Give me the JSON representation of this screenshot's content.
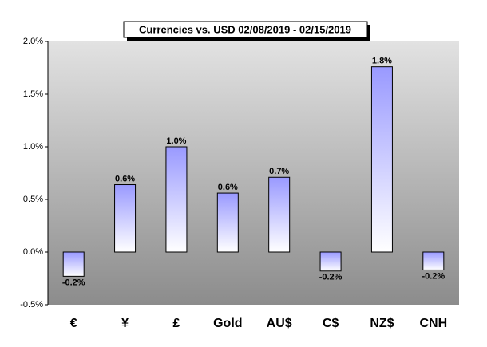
{
  "chart_data": {
    "type": "bar",
    "title": "Currencies vs. USD 02/08/2019 - 02/15/2019",
    "categories": [
      "€",
      "¥",
      "£",
      "Gold",
      "AU$",
      "C$",
      "NZ$",
      "CNH"
    ],
    "values": [
      -0.23,
      0.64,
      1.0,
      0.56,
      0.71,
      -0.18,
      1.76,
      -0.17
    ],
    "value_labels": [
      "-0.2%",
      "0.6%",
      "1.0%",
      "0.6%",
      "0.7%",
      "-0.2%",
      "1.8%",
      "-0.2%"
    ],
    "color": "#9999ff",
    "ylim": [
      -0.5,
      2.0
    ],
    "yticks": [
      {
        "value": -0.5,
        "label": "-0.5%"
      },
      {
        "value": 0,
        "label": "0.0%"
      },
      {
        "value": 0.5,
        "label": "0.5%"
      },
      {
        "value": 1.0,
        "label": "1.0%"
      },
      {
        "value": 1.5,
        "label": "1.5%"
      },
      {
        "value": 2.0,
        "label": "2.0%"
      }
    ]
  }
}
